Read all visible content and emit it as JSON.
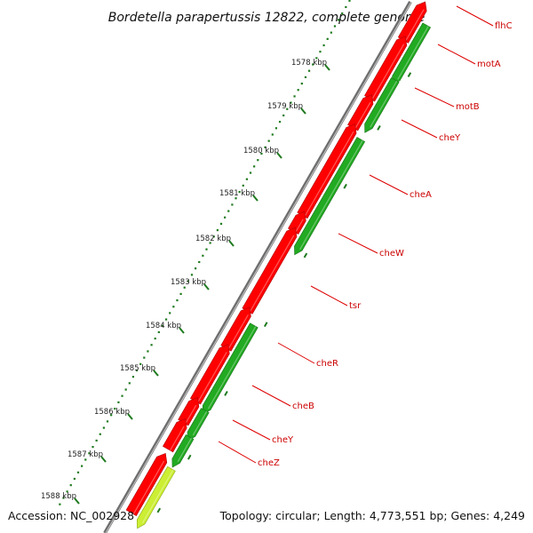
{
  "title": "Bordetella parapertussis 12822, complete genome",
  "accession": "Accession: NC_002928",
  "topology": "Topology: circular; Length: 4,773,551 bp; Genes: 4,249",
  "colors": {
    "backbone": "#888888",
    "tick": "#1e7a1e",
    "forward_gene": "#ff0000",
    "reverse_gene": "#22aa22",
    "label_line": "#dd0000"
  },
  "ticks": [
    "1578 kbp",
    "1579 kbp",
    "1580 kbp",
    "1581 kbp",
    "1582 kbp",
    "1583 kbp",
    "1584 kbp",
    "1585 kbp",
    "1586 kbp",
    "1587 kbp",
    "1588 kbp"
  ],
  "gene_labels": [
    "flhC",
    "motA",
    "motB",
    "cheY",
    "cheA",
    "cheW",
    "tsr",
    "cheR",
    "cheB",
    "cheY",
    "cheZ"
  ]
}
